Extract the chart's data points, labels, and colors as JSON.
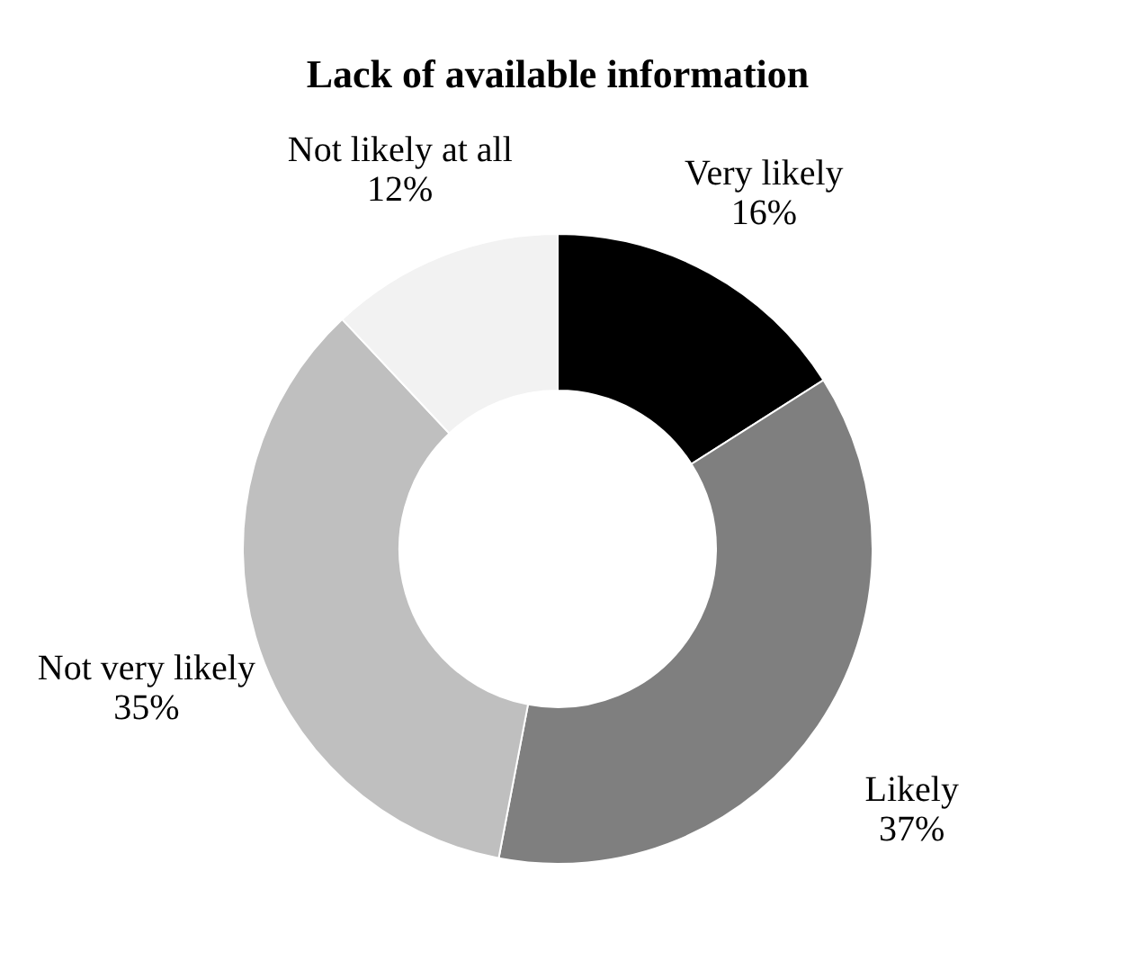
{
  "chart_data": {
    "type": "donut",
    "title": "Lack of available information",
    "categories": [
      "Very likely",
      "Likely",
      "Not very likely",
      "Not likely at all"
    ],
    "values": [
      16,
      37,
      35,
      12
    ],
    "colors": [
      "#000000",
      "#7f7f7f",
      "#bfbfbf",
      "#f2f2f2"
    ],
    "value_labels": [
      "16%",
      "37%",
      "35%",
      "12%"
    ],
    "legend": false
  }
}
